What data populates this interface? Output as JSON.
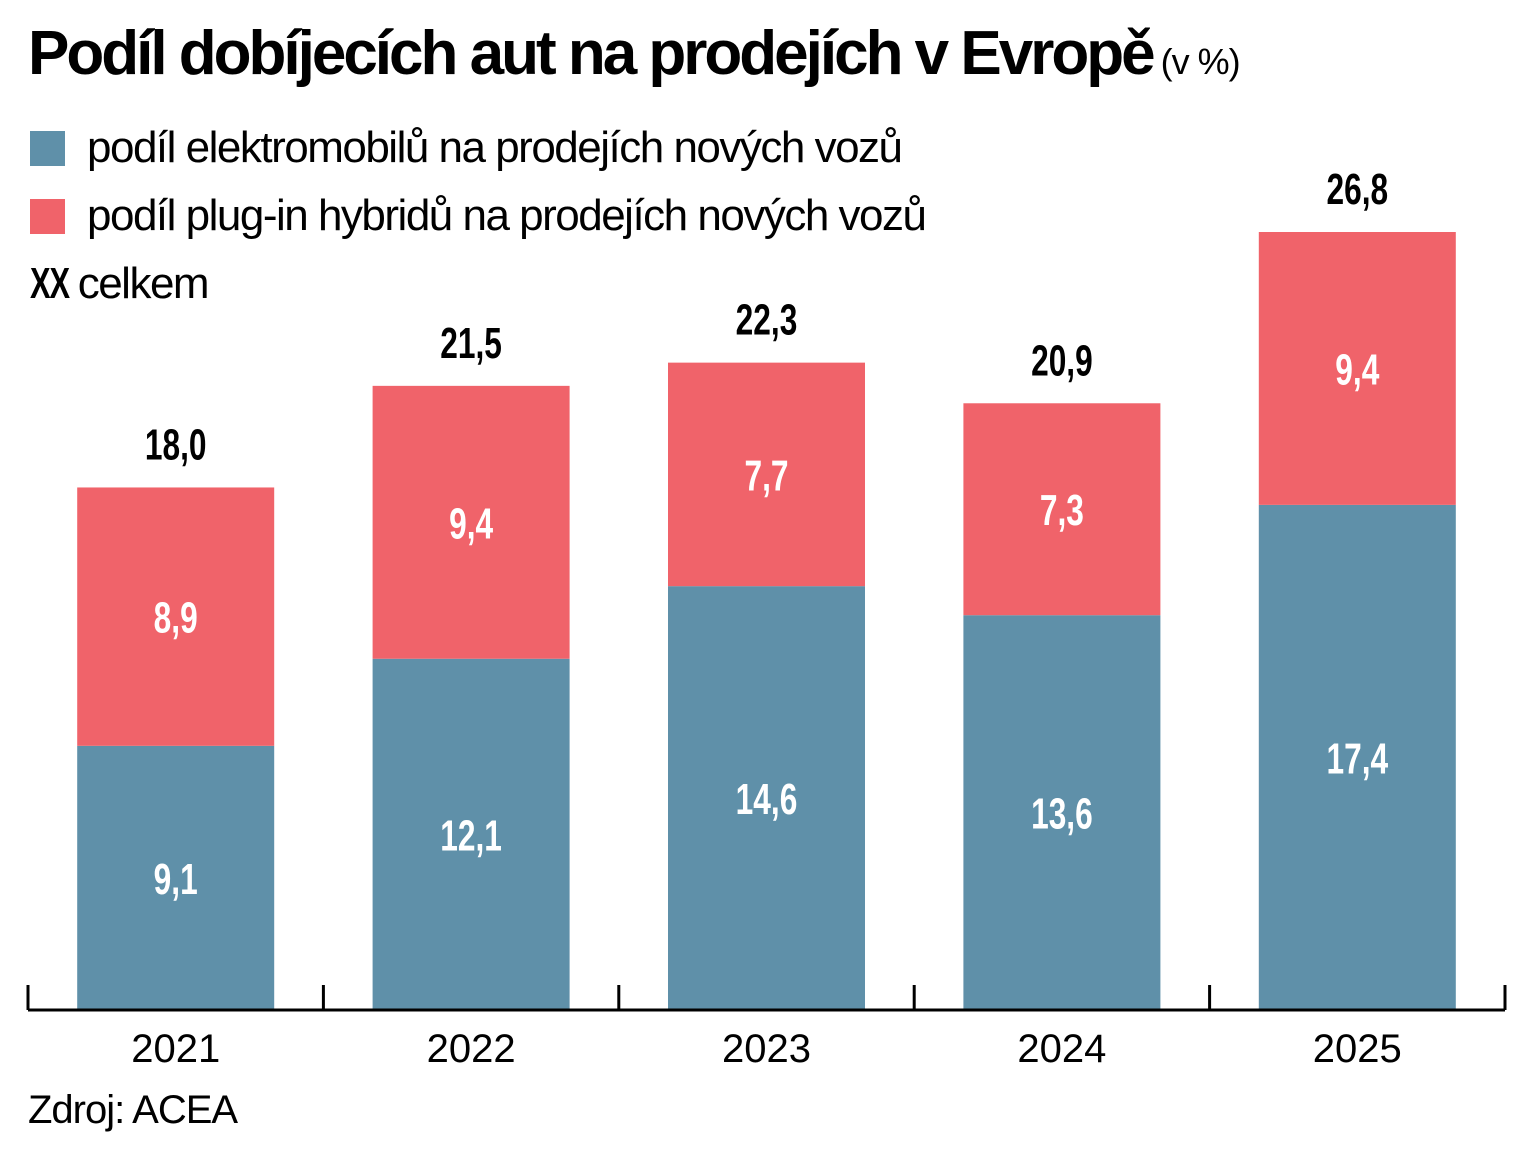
{
  "chart_data": {
    "type": "bar",
    "stacked": true,
    "title": "Podíl dobíjecích aut na prodejích v Evropě",
    "unit": "(v %)",
    "categories": [
      "2021",
      "2022",
      "2023",
      "2024",
      "2025"
    ],
    "series": [
      {
        "name": "podíl elektromobilů na prodejích nových vozů",
        "color": "#5f90a9",
        "values": [
          9.1,
          12.1,
          14.6,
          13.6,
          17.4
        ],
        "labels": [
          "9,1",
          "12,1",
          "14,6",
          "13,6",
          "17,4"
        ]
      },
      {
        "name": "podíl plug-in hybridů na prodejích nových vozů",
        "color": "#f0636a",
        "values": [
          8.9,
          9.4,
          7.7,
          7.3,
          9.4
        ],
        "labels": [
          "8,9",
          "9,4",
          "7,7",
          "7,3",
          "9,4"
        ]
      }
    ],
    "totals": [
      18.0,
      21.5,
      22.3,
      20.9,
      26.8
    ],
    "total_labels": [
      "18,0",
      "21,5",
      "22,3",
      "20,9",
      "26,8"
    ],
    "total_legend": {
      "marker": "XX",
      "label": "celkem"
    },
    "ylim": [
      0,
      26.8
    ],
    "grid": false,
    "legend_position": "top-left",
    "source": "Zdroj: ACEA"
  }
}
